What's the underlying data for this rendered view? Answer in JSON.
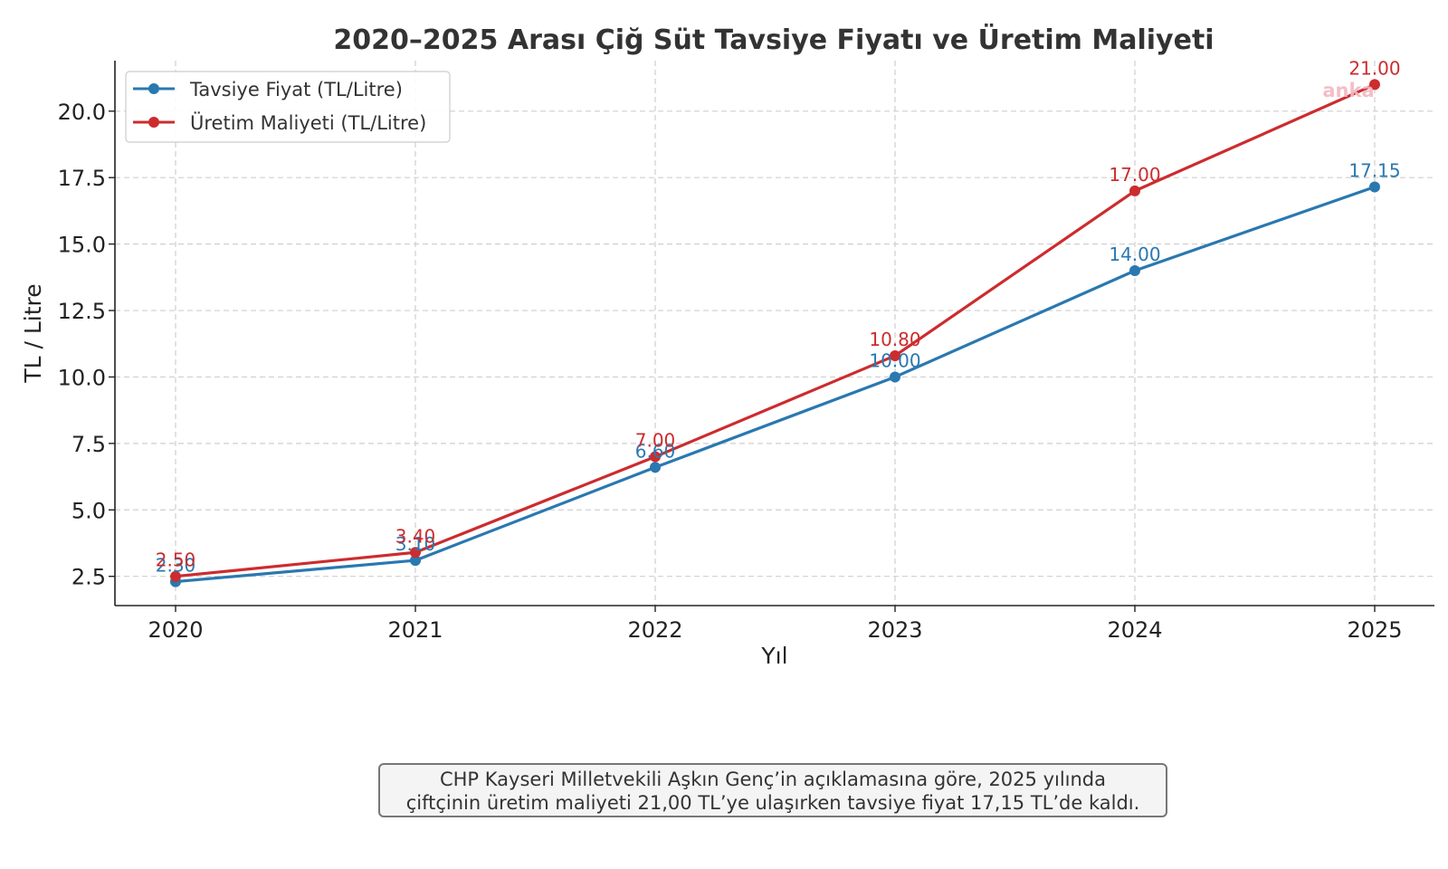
{
  "chart_data": {
    "type": "line",
    "title": "2020–2025 Arası Çiğ Süt Tavsiye Fiyatı ve Üretim Maliyeti",
    "xlabel": "Yıl",
    "ylabel": "TL / Litre",
    "categories": [
      "2020",
      "2021",
      "2022",
      "2023",
      "2024",
      "2025"
    ],
    "x": [
      2020,
      2021,
      2022,
      2023,
      2024,
      2025
    ],
    "ylim": [
      1.4,
      21.9
    ],
    "yticks": [
      "2.5",
      "5.0",
      "7.5",
      "10.0",
      "12.5",
      "15.0",
      "17.5",
      "20.0"
    ],
    "ytick_values": [
      2.5,
      5.0,
      7.5,
      10.0,
      12.5,
      15.0,
      17.5,
      20.0
    ],
    "grid": true,
    "legend_position": "top-left",
    "series": [
      {
        "name": "Tavsiye Fiyat (TL/Litre)",
        "color": "#2a78b0",
        "values": [
          2.3,
          3.1,
          6.6,
          10.0,
          14.0,
          17.15
        ],
        "labels": [
          "2.30",
          "3.10",
          "6.60",
          "10.00",
          "14.00",
          "17.15"
        ]
      },
      {
        "name": "Üretim Maliyeti (TL/Litre)",
        "color": "#cc2c2e",
        "values": [
          2.5,
          3.4,
          7.0,
          10.8,
          17.0,
          21.0
        ],
        "labels": [
          "2.50",
          "3.40",
          "7.00",
          "10.80",
          "17.00",
          "21.00"
        ]
      }
    ],
    "watermark": "anka"
  },
  "note": {
    "line1": "CHP Kayseri Milletvekili Aşkın Genç’in açıklamasına göre, 2025 yılında",
    "line2": "çiftçinin üretim maliyeti 21,00 TL’ye ulaşırken tavsiye fiyat 17,15 TL’de kaldı."
  }
}
